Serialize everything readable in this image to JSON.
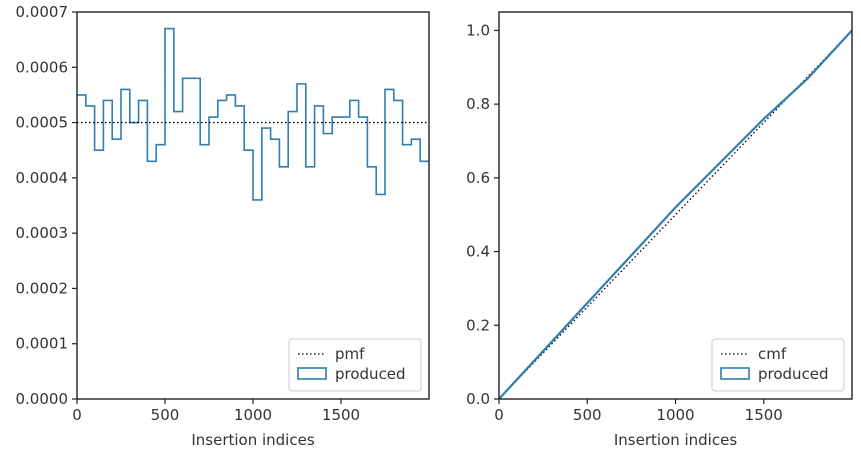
{
  "chart_data": [
    {
      "type": "step-histogram",
      "xlabel": "Insertion indices",
      "ylabel": "",
      "xlim": [
        0,
        2000
      ],
      "ylim": [
        0,
        0.0007
      ],
      "x_ticks": [
        0,
        500,
        1000,
        1500
      ],
      "y_ticks": [
        0.0,
        0.0001,
        0.0002,
        0.0003,
        0.0004,
        0.0005,
        0.0006,
        0.0007
      ],
      "y_tick_labels": [
        "0.0000",
        "0.0001",
        "0.0002",
        "0.0003",
        "0.0004",
        "0.0005",
        "0.0006",
        "0.0007"
      ],
      "grid": false,
      "legend_position": "bottom-right",
      "reference": {
        "name": "pmf",
        "style": "dotted",
        "color": "#000000",
        "value": 0.0005
      },
      "series": [
        {
          "name": "produced",
          "color": "#2f7fb0",
          "bin_edges": [
            0,
            50,
            100,
            150,
            200,
            250,
            300,
            350,
            400,
            450,
            500,
            550,
            600,
            650,
            700,
            750,
            800,
            850,
            900,
            950,
            1000,
            1050,
            1100,
            1150,
            1200,
            1250,
            1300,
            1350,
            1400,
            1450,
            1500,
            1550,
            1600,
            1650,
            1700,
            1750,
            1800,
            1850,
            1900,
            1950,
            2000
          ],
          "values": [
            0.00055,
            0.00053,
            0.00045,
            0.00054,
            0.00047,
            0.00056,
            0.0005,
            0.00054,
            0.00043,
            0.00046,
            0.00067,
            0.00052,
            0.00058,
            0.00058,
            0.00046,
            0.00051,
            0.00054,
            0.00055,
            0.00053,
            0.00045,
            0.00036,
            0.00049,
            0.00047,
            0.00042,
            0.00052,
            0.00057,
            0.00042,
            0.00053,
            0.00048,
            0.00051,
            0.00051,
            0.00054,
            0.00051,
            0.00042,
            0.00037,
            0.00056,
            0.00054,
            0.00046,
            0.00047,
            0.00043
          ]
        }
      ]
    },
    {
      "type": "line",
      "xlabel": "Insertion indices",
      "ylabel": "",
      "xlim": [
        0,
        2000
      ],
      "ylim": [
        0,
        1.05
      ],
      "x_ticks": [
        0,
        500,
        1000,
        1500
      ],
      "y_ticks": [
        0.0,
        0.2,
        0.4,
        0.6,
        0.8,
        1.0
      ],
      "y_tick_labels": [
        "0.0",
        "0.2",
        "0.4",
        "0.6",
        "0.8",
        "1.0"
      ],
      "grid": false,
      "legend_position": "bottom-right",
      "reference": {
        "name": "cmf",
        "style": "dotted",
        "color": "#000000",
        "points": [
          [
            0,
            0
          ],
          [
            2000,
            1
          ]
        ]
      },
      "series": [
        {
          "name": "produced",
          "color": "#2f7fb0",
          "x": [
            0,
            250,
            500,
            750,
            1000,
            1250,
            1500,
            1750,
            2000
          ],
          "y": [
            0,
            0.13,
            0.26,
            0.39,
            0.52,
            0.64,
            0.76,
            0.87,
            1.0
          ]
        }
      ]
    }
  ]
}
